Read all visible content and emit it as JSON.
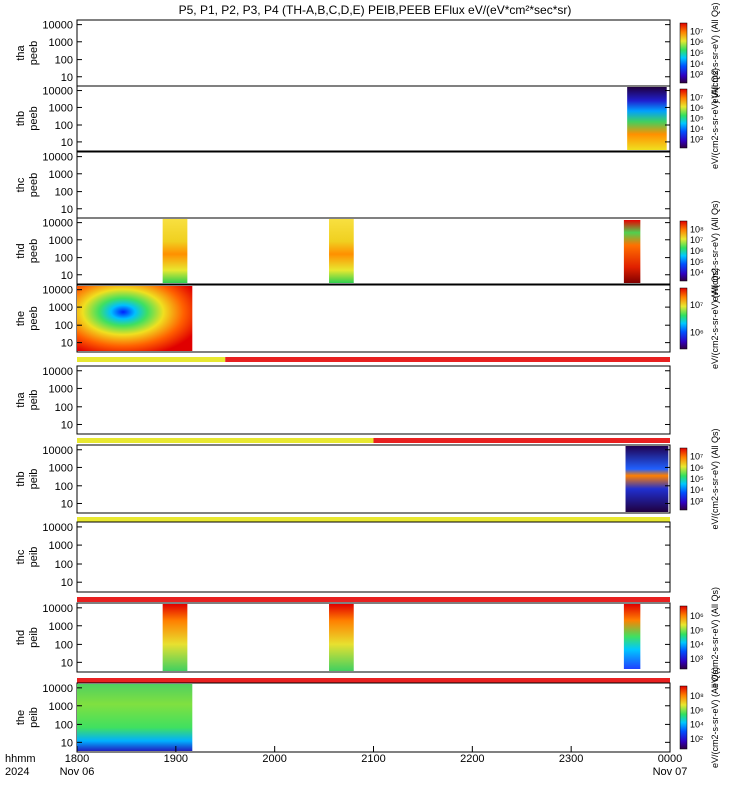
{
  "chart_data": {
    "type": "heatmap",
    "title": "P5, P1, P2, P3, P4 (TH-A,B,C,D,E) PEIB,PEEB EFlux eV/(eV*cm²*sec*sr)",
    "x_axis": {
      "ticks": [
        "1800",
        "1900",
        "2000",
        "2100",
        "2200",
        "2300",
        "0000"
      ],
      "row_label": "hhmm",
      "year_label": "2024",
      "start_date": "Nov 06",
      "end_date": "Nov 07"
    },
    "y_scale": "log",
    "y_ticks": [
      "10",
      "100",
      "1000",
      "10000"
    ],
    "colorbar_units": "eV/(cm2-s-sr-eV) (All Qs)",
    "panels": [
      {
        "name": "tha peeb",
        "line1": "tha",
        "line2": "peeb",
        "colorbar": [
          "10³",
          "10⁴",
          "10⁵",
          "10⁶",
          "10⁷"
        ],
        "shared_colorbar_label": true,
        "data_blocks": []
      },
      {
        "name": "thb peeb",
        "line1": "thb",
        "line2": "peeb",
        "colorbar": [
          "10³",
          "10⁴",
          "10⁵",
          "10⁶",
          "10⁷"
        ],
        "data_blocks": [
          {
            "t_start": "23:34",
            "t_end": "23:58",
            "pattern": "thb_peeb"
          }
        ]
      },
      {
        "name": "thc peeb",
        "line1": "thc",
        "line2": "peeb",
        "colorbar": [],
        "data_blocks": []
      },
      {
        "name": "thd peeb",
        "line1": "thd",
        "line2": "peeb",
        "colorbar": [
          "10⁴",
          "10⁵",
          "10⁶",
          "10⁷",
          "10⁸"
        ],
        "data_blocks": [
          {
            "t_start": "18:52",
            "t_end": "19:07",
            "pattern": "thd_a"
          },
          {
            "t_start": "20:33",
            "t_end": "20:48",
            "pattern": "thd_a"
          },
          {
            "t_start": "23:32",
            "t_end": "23:42",
            "pattern": "thd_b"
          }
        ]
      },
      {
        "name": "the peeb",
        "line1": "the",
        "line2": "peeb",
        "colorbar": [
          "10⁶",
          "10⁷"
        ],
        "data_blocks": [
          {
            "t_start": "18:00",
            "t_end": "19:10",
            "pattern": "the_peeb"
          }
        ],
        "status_bar": [
          {
            "color": "#e8e830",
            "t_end": "19:30"
          },
          {
            "color": "#e82020",
            "t_end": "24:00"
          }
        ]
      },
      {
        "name": "tha peib",
        "line1": "tha",
        "line2": "peib",
        "colorbar": [],
        "data_blocks": [],
        "status_bar": [
          {
            "color": "#e8e830",
            "t_end": "21:00"
          },
          {
            "color": "#e82020",
            "t_end": "24:00"
          }
        ]
      },
      {
        "name": "thb peib",
        "line1": "thb",
        "line2": "peib",
        "colorbar": [
          "10³",
          "10⁴",
          "10⁵",
          "10⁶",
          "10⁷"
        ],
        "data_blocks": [
          {
            "t_start": "23:33",
            "t_end": "23:59",
            "pattern": "thb_peib"
          }
        ],
        "status_bar": [
          {
            "color": "#e8e830",
            "t_end": "24:00"
          }
        ]
      },
      {
        "name": "thc peib",
        "line1": "thc",
        "line2": "peib",
        "colorbar": [],
        "data_blocks": [],
        "status_bar": [
          {
            "color": "#e82020",
            "t_end": "24:00"
          }
        ]
      },
      {
        "name": "thd peib",
        "line1": "thd",
        "line2": "peib",
        "colorbar": [
          "10³",
          "10⁴",
          "10⁵",
          "10⁶"
        ],
        "data_blocks": [
          {
            "t_start": "18:52",
            "t_end": "19:07",
            "pattern": "thd_peib"
          },
          {
            "t_start": "20:33",
            "t_end": "20:48",
            "pattern": "thd_peib"
          },
          {
            "t_start": "23:32",
            "t_end": "23:42",
            "pattern": "thd_peib2"
          }
        ],
        "status_bar": [
          {
            "color": "#e82020",
            "t_end": "24:00"
          }
        ]
      },
      {
        "name": "the peib",
        "line1": "the",
        "line2": "peib",
        "colorbar": [
          "10²",
          "10⁴",
          "10⁶",
          "10⁸"
        ],
        "data_blocks": [
          {
            "t_start": "18:00",
            "t_end": "19:10",
            "pattern": "the_peib"
          }
        ]
      }
    ]
  }
}
